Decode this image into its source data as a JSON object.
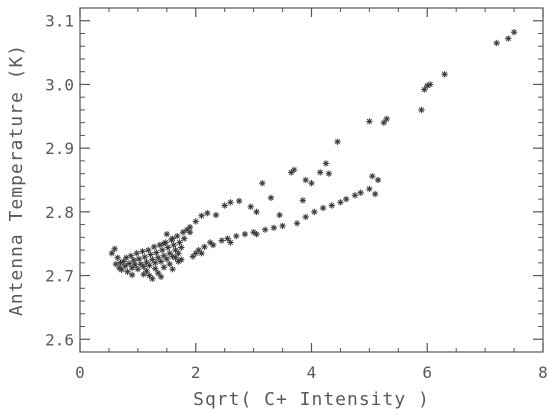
{
  "chart_data": {
    "type": "scatter",
    "title": "",
    "xlabel": "Sqrt( C+ Intensity )",
    "ylabel": "Antenna Temperature (K)",
    "xlim": [
      0,
      8
    ],
    "ylim": [
      2.58,
      3.12
    ],
    "xticks": [
      0,
      2,
      4,
      6,
      8
    ],
    "yticks": [
      2.6,
      2.7,
      2.8,
      2.9,
      3.0,
      3.1
    ],
    "ytick_labels": [
      "2.6",
      "2.7",
      "2.8",
      "2.9",
      "3.0",
      "3.1"
    ],
    "xtick_labels": [
      "0",
      "2",
      "4",
      "6",
      "8"
    ],
    "grid": false,
    "marker": "asterisk",
    "color": "#3a3a3a",
    "series": [
      {
        "points": [
          [
            0.55,
            2.735
          ],
          [
            0.6,
            2.742
          ],
          [
            0.62,
            2.718
          ],
          [
            0.65,
            2.728
          ],
          [
            0.68,
            2.712
          ],
          [
            0.7,
            2.72
          ],
          [
            0.72,
            2.709
          ],
          [
            0.75,
            2.722
          ],
          [
            0.78,
            2.715
          ],
          [
            0.8,
            2.728
          ],
          [
            0.82,
            2.706
          ],
          [
            0.85,
            2.719
          ],
          [
            0.88,
            2.731
          ],
          [
            0.9,
            2.712
          ],
          [
            0.93,
            2.724
          ],
          [
            0.95,
            2.717
          ],
          [
            0.98,
            2.735
          ],
          [
            1.0,
            2.71
          ],
          [
            1.02,
            2.726
          ],
          [
            1.05,
            2.718
          ],
          [
            1.08,
            2.738
          ],
          [
            1.1,
            2.714
          ],
          [
            1.12,
            2.729
          ],
          [
            1.15,
            2.721
          ],
          [
            1.18,
            2.74
          ],
          [
            1.2,
            2.716
          ],
          [
            1.22,
            2.733
          ],
          [
            1.25,
            2.725
          ],
          [
            1.28,
            2.745
          ],
          [
            1.3,
            2.72
          ],
          [
            1.32,
            2.736
          ],
          [
            1.35,
            2.728
          ],
          [
            1.38,
            2.748
          ],
          [
            1.4,
            2.722
          ],
          [
            1.42,
            2.74
          ],
          [
            1.45,
            2.731
          ],
          [
            1.48,
            2.752
          ],
          [
            1.5,
            2.726
          ],
          [
            1.52,
            2.744
          ],
          [
            1.55,
            2.735
          ],
          [
            1.58,
            2.756
          ],
          [
            1.6,
            2.73
          ],
          [
            1.62,
            2.748
          ],
          [
            1.65,
            2.74
          ],
          [
            1.68,
            2.762
          ],
          [
            1.7,
            2.735
          ],
          [
            1.72,
            2.752
          ],
          [
            1.75,
            2.744
          ],
          [
            1.78,
            2.768
          ],
          [
            1.8,
            2.758
          ],
          [
            1.85,
            2.772
          ],
          [
            1.9,
            2.776
          ],
          [
            1.1,
            2.702
          ],
          [
            1.2,
            2.7
          ],
          [
            1.3,
            2.711
          ],
          [
            1.35,
            2.704
          ],
          [
            1.45,
            2.713
          ],
          [
            1.55,
            2.718
          ],
          [
            1.6,
            2.71
          ],
          [
            1.7,
            2.722
          ],
          [
            1.25,
            2.695
          ],
          [
            0.9,
            2.701
          ],
          [
            1.15,
            2.707
          ],
          [
            1.4,
            2.698
          ],
          [
            1.65,
            2.728
          ],
          [
            1.75,
            2.725
          ],
          [
            1.95,
            2.73
          ],
          [
            2.0,
            2.735
          ],
          [
            2.05,
            2.74
          ],
          [
            2.15,
            2.745
          ],
          [
            2.25,
            2.752
          ],
          [
            2.45,
            2.755
          ],
          [
            2.55,
            2.758
          ],
          [
            2.7,
            2.762
          ],
          [
            2.85,
            2.765
          ],
          [
            3.0,
            2.768
          ],
          [
            3.2,
            2.772
          ],
          [
            3.35,
            2.775
          ],
          [
            3.5,
            2.778
          ],
          [
            3.75,
            2.782
          ],
          [
            3.9,
            2.792
          ],
          [
            4.05,
            2.8
          ],
          [
            4.2,
            2.806
          ],
          [
            4.35,
            2.81
          ],
          [
            4.5,
            2.815
          ],
          [
            4.6,
            2.82
          ],
          [
            4.75,
            2.826
          ],
          [
            4.85,
            2.83
          ],
          [
            5.0,
            2.836
          ],
          [
            5.1,
            2.828
          ],
          [
            5.15,
            2.85
          ],
          [
            5.05,
            2.856
          ],
          [
            1.9,
            2.768
          ],
          [
            2.0,
            2.785
          ],
          [
            2.1,
            2.794
          ],
          [
            2.2,
            2.798
          ],
          [
            2.35,
            2.795
          ],
          [
            2.5,
            2.81
          ],
          [
            2.6,
            2.815
          ],
          [
            2.75,
            2.817
          ],
          [
            2.95,
            2.808
          ],
          [
            3.05,
            2.8
          ],
          [
            3.15,
            2.845
          ],
          [
            3.3,
            2.822
          ],
          [
            3.45,
            2.795
          ],
          [
            3.65,
            2.862
          ],
          [
            3.7,
            2.866
          ],
          [
            3.85,
            2.818
          ],
          [
            3.9,
            2.85
          ],
          [
            4.0,
            2.845
          ],
          [
            4.15,
            2.862
          ],
          [
            4.25,
            2.876
          ],
          [
            4.3,
            2.86
          ],
          [
            4.45,
            2.91
          ],
          [
            5.0,
            2.942
          ],
          [
            5.25,
            2.94
          ],
          [
            5.3,
            2.946
          ],
          [
            5.95,
            2.992
          ],
          [
            6.0,
            2.998
          ],
          [
            6.05,
            3.0
          ],
          [
            6.3,
            3.016
          ],
          [
            7.2,
            3.065
          ],
          [
            7.4,
            3.072
          ],
          [
            7.5,
            3.082
          ],
          [
            5.9,
            2.96
          ],
          [
            2.1,
            2.735
          ],
          [
            2.3,
            2.748
          ],
          [
            2.6,
            2.752
          ],
          [
            3.05,
            2.765
          ],
          [
            1.5,
            2.765
          ],
          [
            1.6,
            2.758
          ],
          [
            1.45,
            2.75
          ]
        ]
      }
    ]
  }
}
